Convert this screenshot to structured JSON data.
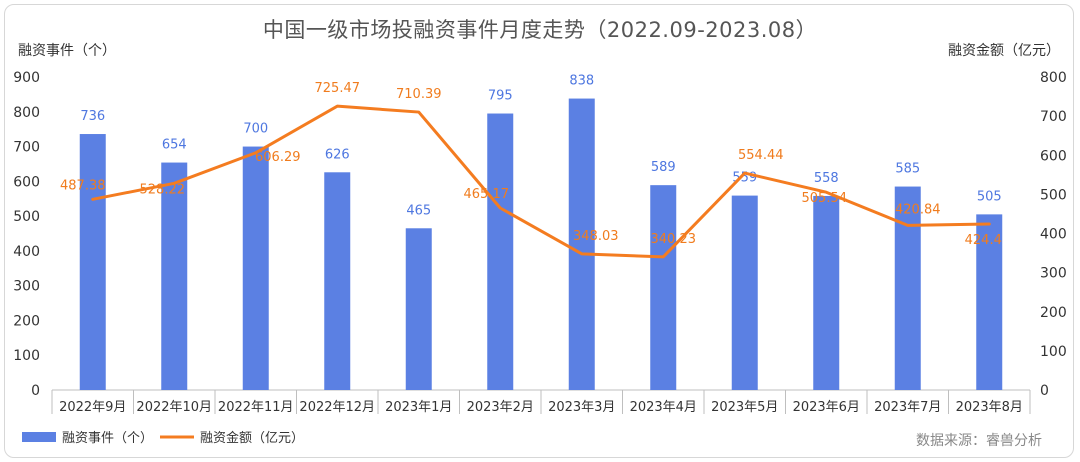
{
  "title": "中国一级市场投融资事件月度走势（2022.09-2023.08）",
  "source": "数据来源：睿兽分析",
  "colors": {
    "bar": "#5b80e3",
    "line": "#f47c20",
    "bar_label": "#4e77e0",
    "line_label": "#f07c1e"
  },
  "chart_data": {
    "type": "bar",
    "title": "中国一级市场投融资事件月度走势（2022.09-2023.08）",
    "ylabel": "融资事件（个）",
    "y2label": "融资金额（亿元）",
    "ylim": [
      0,
      900
    ],
    "y2lim": [
      0,
      800
    ],
    "yticks": [
      0,
      100,
      200,
      300,
      400,
      500,
      600,
      700,
      800,
      900
    ],
    "y2ticks": [
      0,
      100,
      200,
      300,
      400,
      500,
      600,
      700,
      800
    ],
    "categories": [
      "2022年9月",
      "2022年10月",
      "2022年11月",
      "2022年12月",
      "2023年1月",
      "2023年2月",
      "2023年3月",
      "2023年4月",
      "2023年5月",
      "2023年6月",
      "2023年7月",
      "2023年8月"
    ],
    "series": [
      {
        "name": "融资事件（个）",
        "type": "bar",
        "axis": "left",
        "values": [
          736,
          654,
          700,
          626,
          465,
          795,
          838,
          589,
          559,
          558,
          585,
          505
        ]
      },
      {
        "name": "融资金额（亿元）",
        "type": "line",
        "axis": "right",
        "values": [
          487.38,
          528.22,
          606.29,
          725.47,
          710.39,
          465.17,
          348.03,
          340.23,
          554.44,
          505.54,
          420.84,
          424.4
        ]
      }
    ],
    "legend_position": "bottom-left",
    "grid": false
  }
}
